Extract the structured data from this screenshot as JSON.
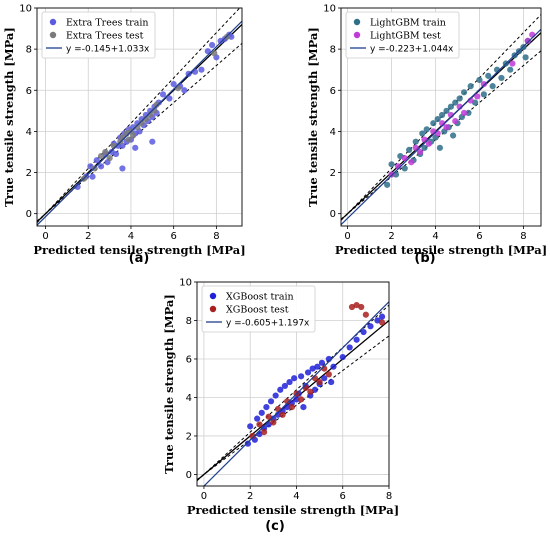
{
  "chart_data": [
    {
      "panel_label": "(a)",
      "type": "scatter",
      "xlabel": "Predicted tensile strength [MPa]",
      "ylabel": "True tensile strength [MPa]",
      "xlim": [
        -0.4,
        9.2
      ],
      "ylim": [
        -0.6,
        10.0
      ],
      "xticks": [
        0,
        2,
        4,
        6,
        8
      ],
      "yticks": [
        0,
        2,
        4,
        6,
        8,
        10
      ],
      "grid": true,
      "legend_position": "top-left",
      "fit": {
        "label": "y =-0.145+1.033x",
        "intercept": -0.145,
        "slope": 1.033,
        "color": "#1f3f8f"
      },
      "series": [
        {
          "name": "Extra Trees train",
          "color": "#5b5be0",
          "points": [
            [
              1.5,
              1.3
            ],
            [
              1.9,
              1.8
            ],
            [
              2.1,
              2.3
            ],
            [
              2.2,
              1.8
            ],
            [
              2.4,
              2.6
            ],
            [
              2.6,
              2.3
            ],
            [
              2.8,
              2.9
            ],
            [
              2.9,
              2.5
            ],
            [
              3.1,
              3.0
            ],
            [
              3.2,
              3.4
            ],
            [
              3.3,
              2.9
            ],
            [
              3.4,
              3.3
            ],
            [
              3.5,
              3.7
            ],
            [
              3.6,
              3.3
            ],
            [
              3.7,
              3.9
            ],
            [
              3.8,
              3.5
            ],
            [
              3.9,
              4.1
            ],
            [
              4.0,
              3.6
            ],
            [
              4.1,
              4.2
            ],
            [
              4.2,
              3.9
            ],
            [
              4.3,
              4.4
            ],
            [
              4.4,
              4.0
            ],
            [
              4.5,
              4.6
            ],
            [
              4.6,
              4.3
            ],
            [
              4.7,
              4.8
            ],
            [
              4.8,
              4.5
            ],
            [
              4.9,
              5.0
            ],
            [
              5.0,
              4.7
            ],
            [
              5.1,
              5.2
            ],
            [
              5.2,
              4.9
            ],
            [
              5.3,
              5.4
            ],
            [
              5.0,
              3.5
            ],
            [
              3.6,
              2.2
            ],
            [
              4.2,
              3.2
            ],
            [
              5.5,
              5.8
            ],
            [
              5.8,
              5.6
            ],
            [
              6.0,
              6.3
            ],
            [
              6.3,
              6.2
            ],
            [
              6.5,
              6.0
            ],
            [
              6.7,
              6.8
            ],
            [
              7.0,
              6.9
            ],
            [
              7.3,
              7.0
            ],
            [
              7.6,
              7.9
            ],
            [
              7.8,
              8.2
            ],
            [
              8.0,
              7.6
            ],
            [
              8.2,
              8.4
            ],
            [
              8.4,
              8.5
            ],
            [
              8.6,
              8.7
            ],
            [
              8.7,
              8.6
            ]
          ]
        },
        {
          "name": "Extra Trees test",
          "color": "#7a7a7a",
          "points": [
            [
              1.8,
              1.7
            ],
            [
              2.3,
              2.2
            ],
            [
              2.6,
              2.8
            ],
            [
              3.0,
              2.7
            ],
            [
              3.2,
              3.3
            ],
            [
              3.5,
              3.5
            ],
            [
              3.8,
              3.9
            ],
            [
              4.0,
              4.0
            ],
            [
              4.1,
              3.8
            ],
            [
              4.3,
              4.2
            ],
            [
              4.5,
              4.4
            ],
            [
              4.7,
              4.6
            ],
            [
              4.9,
              4.8
            ],
            [
              5.1,
              5.0
            ],
            [
              5.2,
              5.3
            ],
            [
              3.6,
              3.7
            ],
            [
              3.9,
              3.6
            ],
            [
              2.8,
              3.0
            ],
            [
              6.2,
              6.1
            ],
            [
              7.9,
              7.8
            ],
            [
              8.5,
              8.6
            ]
          ]
        }
      ]
    },
    {
      "panel_label": "(b)",
      "type": "scatter",
      "xlabel": "Predicted tensile strength [MPa]",
      "ylabel": "True tensile strength [MPa]",
      "xlim": [
        -0.3,
        8.8
      ],
      "ylim": [
        -0.6,
        10.0
      ],
      "xticks": [
        0,
        2,
        4,
        6,
        8
      ],
      "yticks": [
        0,
        2,
        4,
        6,
        8,
        10
      ],
      "grid": true,
      "legend_position": "top-left",
      "fit": {
        "label": "y =-0.223+1.044x",
        "intercept": -0.223,
        "slope": 1.044,
        "color": "#1f3f8f"
      },
      "series": [
        {
          "name": "LightGBM train",
          "color": "#2f6f8a",
          "points": [
            [
              1.8,
              1.4
            ],
            [
              2.0,
              2.4
            ],
            [
              2.2,
              1.9
            ],
            [
              2.4,
              2.8
            ],
            [
              2.6,
              2.2
            ],
            [
              2.8,
              3.1
            ],
            [
              3.0,
              2.6
            ],
            [
              3.1,
              3.5
            ],
            [
              3.3,
              2.9
            ],
            [
              3.4,
              3.9
            ],
            [
              3.5,
              3.2
            ],
            [
              3.6,
              4.1
            ],
            [
              3.8,
              3.5
            ],
            [
              3.9,
              4.4
            ],
            [
              4.0,
              3.7
            ],
            [
              4.1,
              4.6
            ],
            [
              4.2,
              3.2
            ],
            [
              4.3,
              4.8
            ],
            [
              4.4,
              4.0
            ],
            [
              4.5,
              5.0
            ],
            [
              4.6,
              4.2
            ],
            [
              4.7,
              5.2
            ],
            [
              4.8,
              3.8
            ],
            [
              4.9,
              5.4
            ],
            [
              5.0,
              4.4
            ],
            [
              5.1,
              5.6
            ],
            [
              5.2,
              4.7
            ],
            [
              5.3,
              5.9
            ],
            [
              5.5,
              4.9
            ],
            [
              5.6,
              6.2
            ],
            [
              5.8,
              5.4
            ],
            [
              6.0,
              6.5
            ],
            [
              6.2,
              5.8
            ],
            [
              6.4,
              6.7
            ],
            [
              6.6,
              6.2
            ],
            [
              6.8,
              7.0
            ],
            [
              7.0,
              6.6
            ],
            [
              7.2,
              7.3
            ],
            [
              7.4,
              7.0
            ],
            [
              7.6,
              7.7
            ],
            [
              7.8,
              7.9
            ],
            [
              8.0,
              8.1
            ],
            [
              8.1,
              7.6
            ],
            [
              8.2,
              8.4
            ]
          ]
        },
        {
          "name": "LightGBM test",
          "color": "#c03ad8",
          "points": [
            [
              2.0,
              1.9
            ],
            [
              2.3,
              2.3
            ],
            [
              2.6,
              2.7
            ],
            [
              2.9,
              2.5
            ],
            [
              3.1,
              3.2
            ],
            [
              3.3,
              3.0
            ],
            [
              3.5,
              3.6
            ],
            [
              3.7,
              3.4
            ],
            [
              3.9,
              4.0
            ],
            [
              4.1,
              3.9
            ],
            [
              4.3,
              4.4
            ],
            [
              4.5,
              4.2
            ],
            [
              4.7,
              4.8
            ],
            [
              4.9,
              4.5
            ],
            [
              5.1,
              5.2
            ],
            [
              5.3,
              4.9
            ],
            [
              5.6,
              5.5
            ],
            [
              5.9,
              5.7
            ],
            [
              6.2,
              6.3
            ],
            [
              7.5,
              7.3
            ],
            [
              8.2,
              8.4
            ],
            [
              8.4,
              8.7
            ]
          ]
        }
      ]
    },
    {
      "panel_label": "(c)",
      "type": "scatter",
      "xlabel": "Predicted tensile strength [MPa]",
      "ylabel": "True tensile strength [MPa]",
      "xlim": [
        -0.3,
        8.0
      ],
      "ylim": [
        -0.6,
        10.0
      ],
      "xticks": [
        0,
        2,
        4,
        6,
        8
      ],
      "yticks": [
        0,
        2,
        4,
        6,
        8,
        10
      ],
      "grid": true,
      "legend_position": "top-left",
      "fit": {
        "label": "y =-0.605+1.197x",
        "intercept": -0.605,
        "slope": 1.197,
        "color": "#1f3f8f"
      },
      "series": [
        {
          "name": "XGBoost train",
          "color": "#2020d8",
          "points": [
            [
              1.9,
              1.6
            ],
            [
              2.0,
              2.5
            ],
            [
              2.2,
              1.8
            ],
            [
              2.3,
              2.9
            ],
            [
              2.4,
              2.1
            ],
            [
              2.5,
              3.2
            ],
            [
              2.6,
              2.4
            ],
            [
              2.7,
              3.5
            ],
            [
              2.8,
              2.6
            ],
            [
              2.9,
              3.8
            ],
            [
              3.0,
              2.9
            ],
            [
              3.1,
              4.1
            ],
            [
              3.2,
              3.1
            ],
            [
              3.3,
              4.4
            ],
            [
              3.4,
              3.3
            ],
            [
              3.5,
              4.6
            ],
            [
              3.6,
              3.5
            ],
            [
              3.7,
              4.8
            ],
            [
              3.8,
              3.7
            ],
            [
              3.9,
              5.0
            ],
            [
              4.0,
              3.9
            ],
            [
              4.1,
              4.2
            ],
            [
              4.2,
              5.1
            ],
            [
              4.3,
              3.5
            ],
            [
              4.4,
              4.6
            ],
            [
              4.5,
              5.3
            ],
            [
              4.6,
              4.1
            ],
            [
              4.7,
              5.5
            ],
            [
              4.8,
              4.4
            ],
            [
              4.9,
              5.6
            ],
            [
              5.0,
              4.7
            ],
            [
              5.1,
              5.8
            ],
            [
              5.2,
              5.0
            ],
            [
              5.4,
              6.0
            ],
            [
              5.5,
              4.8
            ],
            [
              5.6,
              5.6
            ],
            [
              6.0,
              6.1
            ],
            [
              6.3,
              6.6
            ],
            [
              6.6,
              7.0
            ],
            [
              6.9,
              7.4
            ],
            [
              7.2,
              7.7
            ],
            [
              7.5,
              8.0
            ],
            [
              7.7,
              8.2
            ]
          ]
        },
        {
          "name": "XGBoost test",
          "color": "#a81f1f",
          "points": [
            [
              2.1,
              2.0
            ],
            [
              2.4,
              2.6
            ],
            [
              2.6,
              2.2
            ],
            [
              2.8,
              3.0
            ],
            [
              3.0,
              2.7
            ],
            [
              3.2,
              3.4
            ],
            [
              3.4,
              3.1
            ],
            [
              3.6,
              3.8
            ],
            [
              3.8,
              3.5
            ],
            [
              4.0,
              4.2
            ],
            [
              4.2,
              3.9
            ],
            [
              4.4,
              4.5
            ],
            [
              4.6,
              4.3
            ],
            [
              4.8,
              5.0
            ],
            [
              5.0,
              4.8
            ],
            [
              5.2,
              5.5
            ],
            [
              5.4,
              5.2
            ],
            [
              6.4,
              8.7
            ],
            [
              6.6,
              8.8
            ],
            [
              6.8,
              8.7
            ],
            [
              7.0,
              8.3
            ],
            [
              7.7,
              7.9
            ]
          ]
        }
      ]
    }
  ]
}
